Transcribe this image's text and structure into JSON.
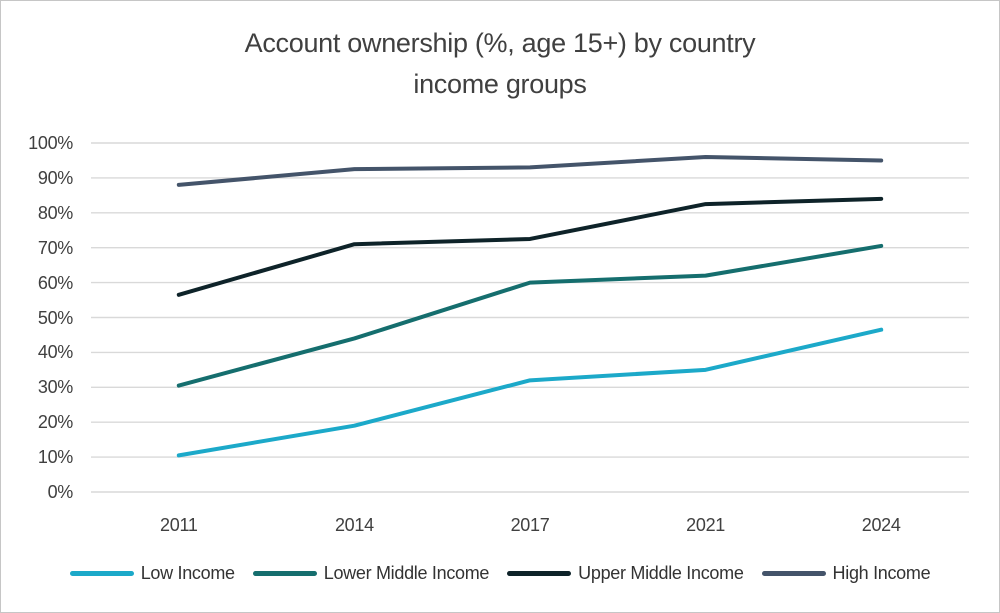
{
  "title": {
    "line1": "Account ownership (%, age 15+) by country",
    "line2": "income groups"
  },
  "chart_data": {
    "type": "line",
    "title": "Account ownership (%, age 15+) by country income groups",
    "categories": [
      "2011",
      "2014",
      "2017",
      "2021",
      "2024"
    ],
    "series": [
      {
        "name": "Low Income",
        "color": "#1CA9C9",
        "values": [
          10.5,
          19,
          32,
          35,
          46.5
        ]
      },
      {
        "name": "Lower Middle Income",
        "color": "#156E6E",
        "values": [
          30.5,
          44,
          60,
          62,
          70.5
        ]
      },
      {
        "name": "Upper Middle Income",
        "color": "#0E2329",
        "values": [
          56.5,
          71,
          72.5,
          82.5,
          84
        ]
      },
      {
        "name": "High Income",
        "color": "#44546A",
        "values": [
          88,
          92.5,
          93,
          96,
          95
        ]
      }
    ],
    "xlabel": "",
    "ylabel": "",
    "ylim": [
      0,
      100
    ],
    "y_ticks": [
      0,
      10,
      20,
      30,
      40,
      50,
      60,
      70,
      80,
      90,
      100
    ],
    "y_tick_labels": [
      "0%",
      "10%",
      "20%",
      "30%",
      "40%",
      "50%",
      "60%",
      "70%",
      "80%",
      "90%",
      "100%"
    ],
    "grid": "horizontal",
    "gridline_color": "#D9D9D9",
    "line_width": 4,
    "legend_position": "bottom"
  }
}
